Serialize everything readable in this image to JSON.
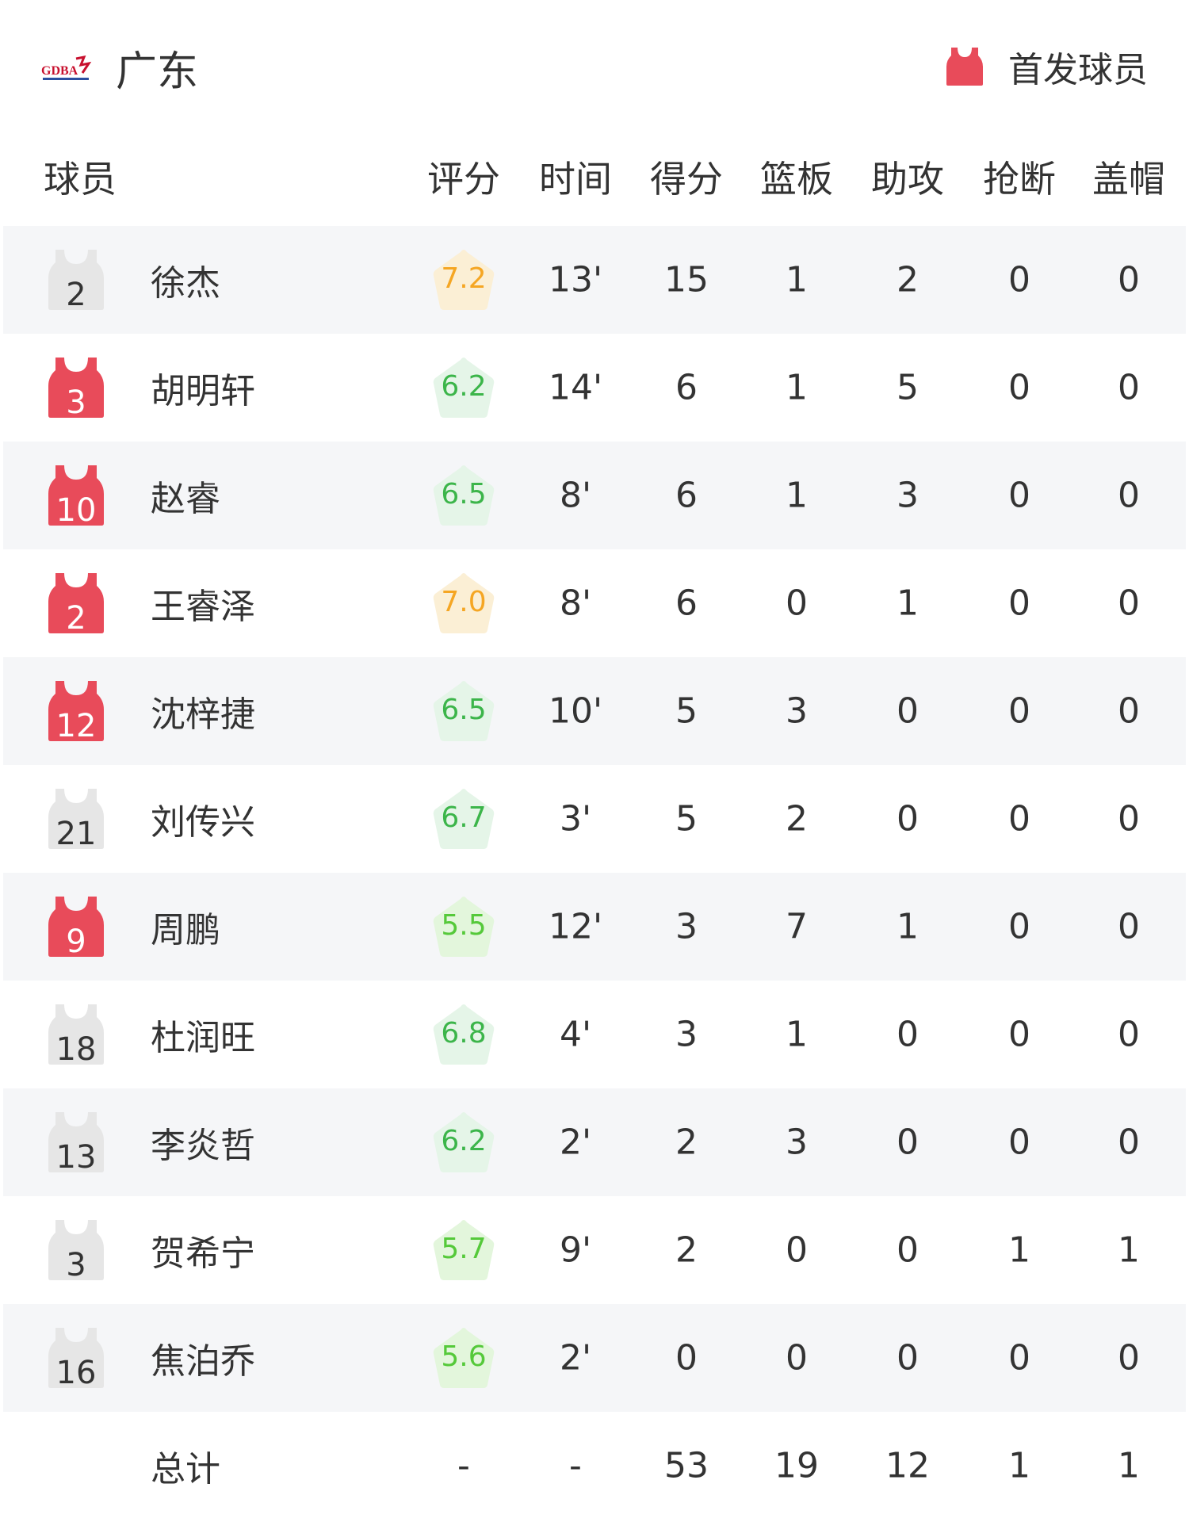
{
  "header": {
    "team_name": "广东",
    "logo_text": "GDBA",
    "starter_legend": "首发球员"
  },
  "colors": {
    "starter_jersey": "#e84b5a",
    "bench_jersey": "#e6e6e6",
    "rating_high_bg": "#fbefd5",
    "rating_high_text": "#f5a623",
    "rating_mid_bg": "#e5f5e8",
    "rating_mid_text": "#3cb54a",
    "rating_low_bg": "#e3f6dc",
    "rating_low_text": "#55c93a"
  },
  "columns": [
    "球员",
    "评分",
    "时间",
    "得分",
    "篮板",
    "助攻",
    "抢断",
    "盖帽"
  ],
  "players": [
    {
      "number": "2",
      "name": "徐杰",
      "starter": false,
      "rating": "7.2",
      "time": "13'",
      "points": "15",
      "rebounds": "1",
      "assists": "2",
      "steals": "0",
      "blocks": "0"
    },
    {
      "number": "3",
      "name": "胡明轩",
      "starter": true,
      "rating": "6.2",
      "time": "14'",
      "points": "6",
      "rebounds": "1",
      "assists": "5",
      "steals": "0",
      "blocks": "0"
    },
    {
      "number": "10",
      "name": "赵睿",
      "starter": true,
      "rating": "6.5",
      "time": "8'",
      "points": "6",
      "rebounds": "1",
      "assists": "3",
      "steals": "0",
      "blocks": "0"
    },
    {
      "number": "2",
      "name": "王睿泽",
      "starter": true,
      "rating": "7.0",
      "time": "8'",
      "points": "6",
      "rebounds": "0",
      "assists": "1",
      "steals": "0",
      "blocks": "0"
    },
    {
      "number": "12",
      "name": "沈梓捷",
      "starter": true,
      "rating": "6.5",
      "time": "10'",
      "points": "5",
      "rebounds": "3",
      "assists": "0",
      "steals": "0",
      "blocks": "0"
    },
    {
      "number": "21",
      "name": "刘传兴",
      "starter": false,
      "rating": "6.7",
      "time": "3'",
      "points": "5",
      "rebounds": "2",
      "assists": "0",
      "steals": "0",
      "blocks": "0"
    },
    {
      "number": "9",
      "name": "周鹏",
      "starter": true,
      "rating": "5.5",
      "time": "12'",
      "points": "3",
      "rebounds": "7",
      "assists": "1",
      "steals": "0",
      "blocks": "0"
    },
    {
      "number": "18",
      "name": "杜润旺",
      "starter": false,
      "rating": "6.8",
      "time": "4'",
      "points": "3",
      "rebounds": "1",
      "assists": "0",
      "steals": "0",
      "blocks": "0"
    },
    {
      "number": "13",
      "name": "李炎哲",
      "starter": false,
      "rating": "6.2",
      "time": "2'",
      "points": "2",
      "rebounds": "3",
      "assists": "0",
      "steals": "0",
      "blocks": "0"
    },
    {
      "number": "3",
      "name": "贺希宁",
      "starter": false,
      "rating": "5.7",
      "time": "9'",
      "points": "2",
      "rebounds": "0",
      "assists": "0",
      "steals": "1",
      "blocks": "1"
    },
    {
      "number": "16",
      "name": "焦泊乔",
      "starter": false,
      "rating": "5.6",
      "time": "2'",
      "points": "0",
      "rebounds": "0",
      "assists": "0",
      "steals": "0",
      "blocks": "0"
    }
  ],
  "total": {
    "label": "总计",
    "rating": "-",
    "time": "-",
    "points": "53",
    "rebounds": "19",
    "assists": "12",
    "steals": "1",
    "blocks": "1"
  }
}
